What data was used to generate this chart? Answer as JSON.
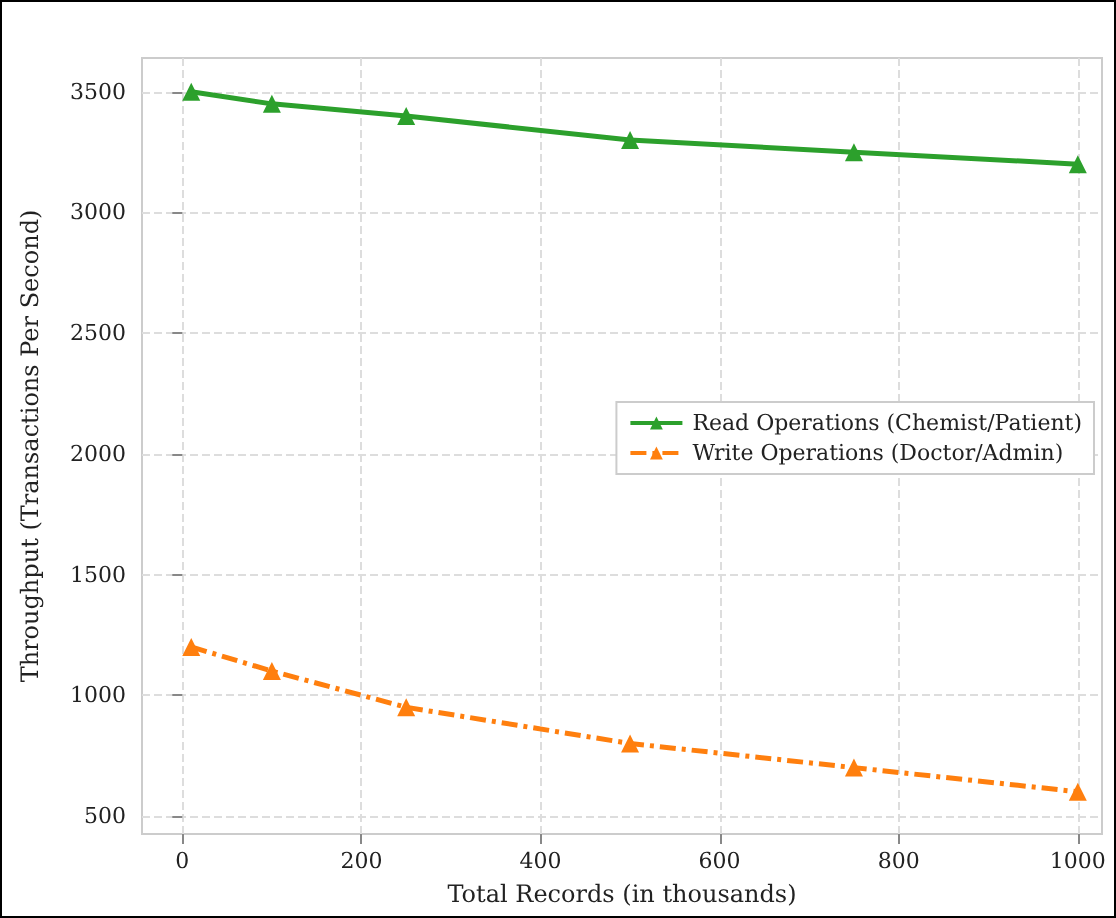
{
  "chart_data": {
    "type": "line",
    "xlabel": "Total Records (in thousands)",
    "ylabel": "Throughput (Transactions Per Second)",
    "x": [
      10,
      100,
      250,
      500,
      750,
      1000
    ],
    "series": [
      {
        "name": "Read Operations (Chemist/Patient)",
        "color": "#2ca02c",
        "values": [
          3500,
          3450,
          3400,
          3300,
          3250,
          3200
        ],
        "marker": "triangle",
        "line_style": "solid"
      },
      {
        "name": "Write Operations (Doctor/Admin)",
        "color": "#ff7f0e",
        "values": [
          1200,
          1100,
          950,
          800,
          700,
          600
        ],
        "marker": "triangle",
        "line_style": "dashed"
      }
    ],
    "xlim": [
      -45,
      1027
    ],
    "xticks": [
      0,
      200,
      400,
      600,
      800,
      1000
    ],
    "ylim": [
      425,
      3640
    ],
    "yticks": [
      500,
      1000,
      1500,
      2000,
      2500,
      3000,
      3500
    ],
    "grid": true,
    "legend": "right"
  }
}
